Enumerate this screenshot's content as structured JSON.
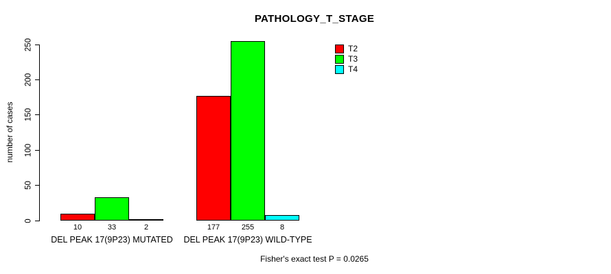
{
  "title": "PATHOLOGY_T_STAGE",
  "footer": {
    "stat_text": "Fisher's exact test P = 0.0265"
  },
  "chart_data": {
    "type": "bar",
    "title": "PATHOLOGY_T_STAGE",
    "categories": [
      "DEL PEAK 17(9P23) MUTATED",
      "DEL PEAK 17(9P23) WILD-TYPE"
    ],
    "series": [
      {
        "name": "T2",
        "color": "#ff0000",
        "values": [
          10,
          177
        ]
      },
      {
        "name": "T3",
        "color": "#00ff00",
        "values": [
          33,
          255
        ]
      },
      {
        "name": "T4",
        "color": "#00ffff",
        "values": [
          2,
          8
        ]
      }
    ],
    "xlabel": "",
    "ylabel": "number of cases",
    "yticks": [
      0,
      50,
      100,
      150,
      200,
      250
    ],
    "ylim": [
      0,
      250
    ],
    "grid": false,
    "bar_value_labels": true,
    "legend_position": "top-right",
    "annotation": "Fisher's exact test P = 0.0265"
  }
}
